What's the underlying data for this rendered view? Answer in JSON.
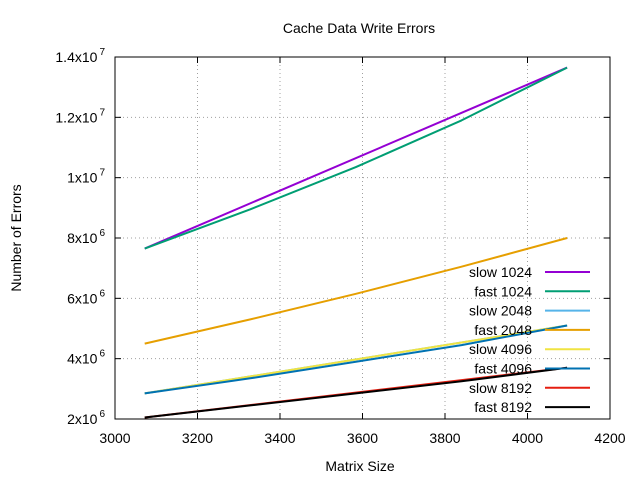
{
  "chart_data": {
    "type": "line",
    "title": "Cache Data Write Errors",
    "xlabel": "Matrix Size",
    "ylabel": "Number of Errors",
    "xlim": [
      3000,
      4200
    ],
    "ylim": [
      2000000,
      14000000
    ],
    "grid": true,
    "legend_position": "bottom-right",
    "x_ticks": [
      {
        "value": 3000,
        "label": "3000"
      },
      {
        "value": 3200,
        "label": "3200"
      },
      {
        "value": 3400,
        "label": "3400"
      },
      {
        "value": 3600,
        "label": "3600"
      },
      {
        "value": 3800,
        "label": "3800"
      },
      {
        "value": 4000,
        "label": "4000"
      },
      {
        "value": 4200,
        "label": "4200"
      }
    ],
    "y_ticks": [
      {
        "value": 2000000,
        "mant": "2x10",
        "exp": "6"
      },
      {
        "value": 4000000,
        "mant": "4x10",
        "exp": "6"
      },
      {
        "value": 6000000,
        "mant": "6x10",
        "exp": "6"
      },
      {
        "value": 8000000,
        "mant": "8x10",
        "exp": "6"
      },
      {
        "value": 10000000,
        "mant": "1x10",
        "exp": "7"
      },
      {
        "value": 12000000,
        "mant": "1.2x10",
        "exp": "7"
      },
      {
        "value": 14000000,
        "mant": "1.4x10",
        "exp": "7"
      }
    ],
    "series": [
      {
        "name": "slow 1024",
        "color": "#9400d3",
        "x": [
          3072,
          4096
        ],
        "y": [
          7650000,
          13650000
        ]
      },
      {
        "name": "fast 1024",
        "color": "#009e73",
        "x": [
          3072,
          3328,
          3584,
          3840,
          4096
        ],
        "y": [
          7650000,
          8950000,
          10350000,
          11900000,
          13650000
        ]
      },
      {
        "name": "slow 2048",
        "color": "#56b4e9",
        "x": [
          3072,
          4096
        ],
        "y": [
          2850000,
          5100000
        ]
      },
      {
        "name": "fast 2048",
        "color": "#e69f00",
        "x": [
          3072,
          3328,
          3584,
          3840,
          4096
        ],
        "y": [
          4500000,
          5300000,
          6150000,
          7050000,
          8000000
        ]
      },
      {
        "name": "slow 4096",
        "color": "#f0e442",
        "x": [
          3072,
          4096
        ],
        "y": [
          2850000,
          5100000
        ]
      },
      {
        "name": "fast 4096",
        "color": "#0072b2",
        "x": [
          3072,
          3328,
          3584,
          3840,
          4096
        ],
        "y": [
          2850000,
          3350000,
          3900000,
          4450000,
          5100000
        ]
      },
      {
        "name": "slow 8192",
        "color": "#e51e10",
        "x": [
          3072,
          4096
        ],
        "y": [
          2050000,
          3700000
        ]
      },
      {
        "name": "fast 8192",
        "color": "#000000",
        "x": [
          3072,
          3328,
          3584,
          3840,
          4096
        ],
        "y": [
          2050000,
          2450000,
          2850000,
          3250000,
          3700000
        ]
      }
    ]
  }
}
